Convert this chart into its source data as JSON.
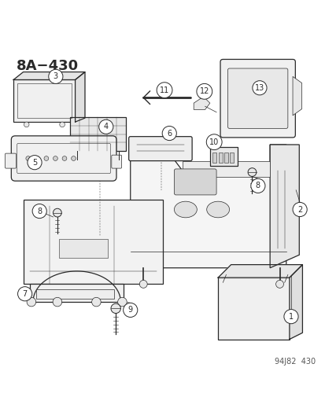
{
  "title": "8A−430",
  "watermark": "94J82  430",
  "bg_color": "#ffffff",
  "line_color": "#2a2a2a",
  "title_fontsize": 13,
  "watermark_fontsize": 7,
  "part_label_fontsize": 8
}
